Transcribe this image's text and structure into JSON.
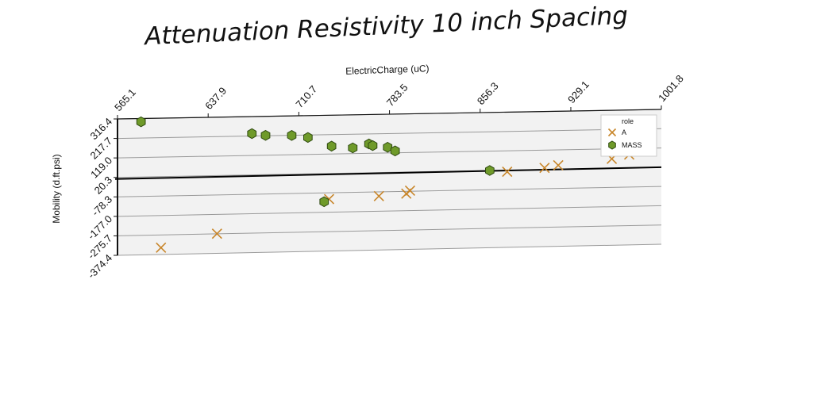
{
  "chart_data": {
    "type": "scatter",
    "title": "Attenuation Resistivity 10 inch Spacing",
    "xlabel": "ElectricCharge (uC)",
    "ylabel": "Mobility (d.ft.psi)",
    "x_ticks": [
      "565.1",
      "637.9",
      "710.7",
      "783.5",
      "856.3",
      "929.1",
      "1001.8"
    ],
    "y_ticks": [
      "316.4",
      "217.7",
      "119.0",
      "20.3",
      "-78.3",
      "-177.0",
      "-275.7",
      "-374.4"
    ],
    "xlim": [
      565.1,
      1001.8
    ],
    "ylim": [
      -374.4,
      316.4
    ],
    "x_axis_position": "top",
    "grid": "horizontal",
    "reference_line_y": 20.3,
    "legend": {
      "title": "role",
      "position": "top-right"
    },
    "series": [
      {
        "name": "A",
        "marker": "x",
        "color": "#c8862a",
        "points": [
          [
            600,
            -340
          ],
          [
            645,
            -275
          ],
          [
            735,
            -110
          ],
          [
            775,
            -100
          ],
          [
            797,
            -90
          ],
          [
            800,
            -75
          ],
          [
            878,
            12
          ],
          [
            908,
            28
          ],
          [
            919,
            40
          ],
          [
            962,
            68
          ],
          [
            976,
            88
          ]
        ]
      },
      {
        "name": "MASS",
        "marker": "hexagon",
        "color": "#6f9a2a",
        "points": [
          [
            584,
            300
          ],
          [
            673,
            230
          ],
          [
            684,
            220
          ],
          [
            705,
            217
          ],
          [
            718,
            205
          ],
          [
            737,
            159
          ],
          [
            754,
            148
          ],
          [
            767,
            167
          ],
          [
            770,
            158
          ],
          [
            782,
            148
          ],
          [
            788,
            129
          ],
          [
            731,
            -123
          ],
          [
            864,
            20
          ]
        ]
      }
    ]
  }
}
